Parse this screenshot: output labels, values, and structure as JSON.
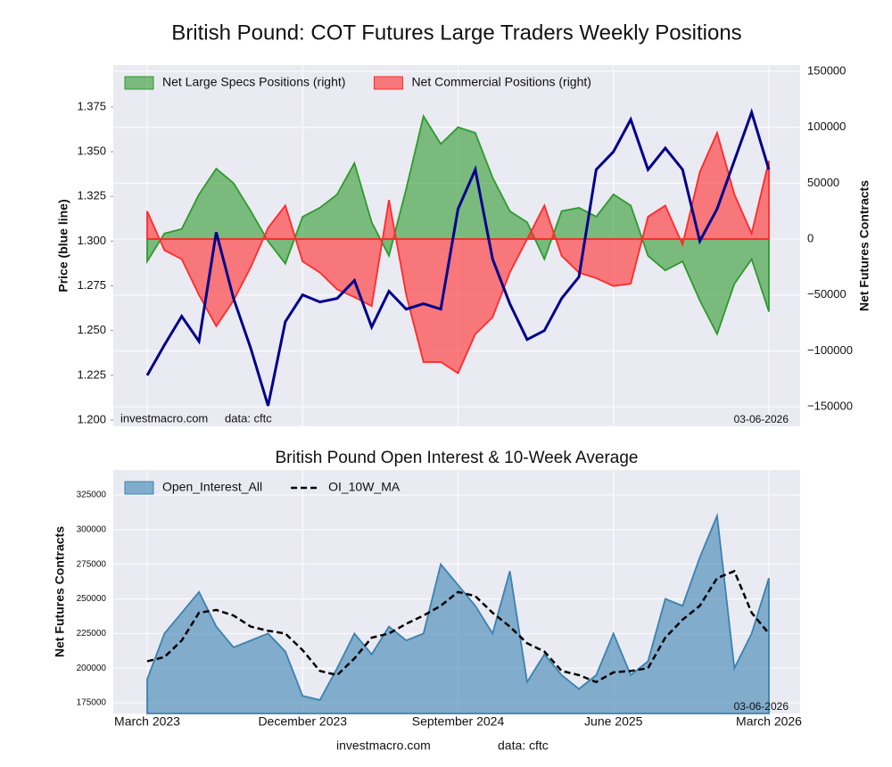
{
  "title": "British Pound: COT Futures Large Traders Weekly Positions",
  "footer": {
    "source": "investmacro.com",
    "data_note": "data: cftc"
  },
  "chart_data": [
    {
      "type": "combo",
      "ylabel": "Price (blue line)",
      "y2label": "Net Futures Contracts",
      "source": "investmacro.com",
      "data_note": "data: cftc",
      "date_note": "03-06-2026",
      "x": [
        "2023-03",
        "2023-04",
        "2023-05",
        "2023-06",
        "2023-07",
        "2023-08",
        "2023-09",
        "2023-10",
        "2023-11",
        "2023-12",
        "2024-01",
        "2024-02",
        "2024-03",
        "2024-04",
        "2024-05",
        "2024-06",
        "2024-07",
        "2024-08",
        "2024-09",
        "2024-10",
        "2024-11",
        "2024-12",
        "2025-01",
        "2025-02",
        "2025-03",
        "2025-04",
        "2025-05",
        "2025-06",
        "2025-07",
        "2025-08",
        "2025-09",
        "2025-10",
        "2025-11",
        "2025-12",
        "2026-01",
        "2026-02",
        "2026-03"
      ],
      "xticks": [
        "2023-03",
        "2023-12",
        "2024-09",
        "2025-06",
        "2026-03"
      ],
      "ylim": [
        1.1965,
        1.3984
      ],
      "yticks": [
        {
          "value": 1.2,
          "label": "1.200"
        },
        1.225,
        {
          "value": 1.25,
          "label": "1.250"
        },
        1.275,
        {
          "value": 1.3,
          "label": "1.300"
        },
        1.325,
        {
          "value": 1.35,
          "label": "1.350"
        },
        1.375
      ],
      "y2lim": [
        -167500,
        155600
      ],
      "y2ticks": [
        {
          "value": -150000,
          "label": "−150000"
        },
        {
          "value": -100000,
          "label": "−100000"
        },
        {
          "value": -50000,
          "label": "−50000"
        },
        0,
        50000,
        100000,
        150000
      ],
      "grid": true,
      "legend": "upper left",
      "series": [
        {
          "name": "Net Large Specs Positions (right)",
          "type": "area",
          "axis": "y2",
          "color": "#2e9a2e",
          "values": [
            -20000,
            5000,
            9000,
            40000,
            63000,
            50000,
            25000,
            -2000,
            -22000,
            20000,
            28000,
            40000,
            68000,
            15000,
            -15000,
            45000,
            110000,
            85000,
            100000,
            95000,
            55000,
            25000,
            15000,
            -18000,
            25000,
            28000,
            20000,
            40000,
            30000,
            -15000,
            -28000,
            -20000,
            -55000,
            -85000,
            -40000,
            -18000,
            -65000
          ]
        },
        {
          "name": "Net Commercial Positions (right)",
          "type": "area",
          "axis": "y2",
          "color": "#ff2a2a",
          "values": [
            25000,
            -10000,
            -18000,
            -50000,
            -78000,
            -55000,
            -25000,
            10000,
            30000,
            -20000,
            -30000,
            -45000,
            -52000,
            -60000,
            35000,
            -50000,
            -110000,
            -110000,
            -120000,
            -85000,
            -70000,
            -30000,
            0,
            30000,
            -15000,
            -30000,
            -35000,
            -42000,
            -40000,
            20000,
            30000,
            -5000,
            60000,
            95000,
            40000,
            5000,
            70000
          ]
        },
        {
          "type": "line",
          "axis": "y",
          "color": "#00008b",
          "values": [
            1.225,
            1.242,
            1.258,
            1.244,
            1.305,
            1.268,
            1.24,
            1.208,
            1.255,
            1.27,
            1.266,
            1.268,
            1.278,
            1.252,
            1.272,
            1.262,
            1.265,
            1.262,
            1.318,
            1.34,
            1.29,
            1.265,
            1.245,
            1.25,
            1.268,
            1.28,
            1.34,
            1.35,
            1.368,
            1.34,
            1.352,
            1.34,
            1.3,
            1.318,
            1.345,
            1.372,
            1.34
          ]
        }
      ]
    },
    {
      "type": "combo",
      "title": "British Pound Open Interest & 10-Week Average",
      "ylabel": "Net Futures Contracts",
      "date_note": "03-06-2026",
      "x": [
        "2023-03",
        "2023-04",
        "2023-05",
        "2023-06",
        "2023-07",
        "2023-08",
        "2023-09",
        "2023-10",
        "2023-11",
        "2023-12",
        "2024-01",
        "2024-02",
        "2024-03",
        "2024-04",
        "2024-05",
        "2024-06",
        "2024-07",
        "2024-08",
        "2024-09",
        "2024-10",
        "2024-11",
        "2024-12",
        "2025-01",
        "2025-02",
        "2025-03",
        "2025-04",
        "2025-05",
        "2025-06",
        "2025-07",
        "2025-08",
        "2025-09",
        "2025-10",
        "2025-11",
        "2025-12",
        "2026-01",
        "2026-02",
        "2026-03"
      ],
      "xticks": [
        {
          "value": "2023-03",
          "label": "March 2023"
        },
        {
          "value": "2023-12",
          "label": "December 2023"
        },
        {
          "value": "2024-09",
          "label": "September 2024"
        },
        {
          "value": "2025-06",
          "label": "June 2025"
        },
        {
          "value": "2026-03",
          "label": "March 2026"
        }
      ],
      "ylim": [
        167300,
        343000
      ],
      "yticks": [
        175000,
        200000,
        225000,
        250000,
        275000,
        300000,
        325000
      ],
      "grid": true,
      "legend": "upper left",
      "series": [
        {
          "name": "Open_Interest_All",
          "type": "area",
          "axis": "y",
          "color": "#3a82b0",
          "values": [
            192000,
            225000,
            240000,
            255000,
            230000,
            215000,
            220000,
            225000,
            212000,
            180000,
            177000,
            200000,
            225000,
            210000,
            230000,
            220000,
            225000,
            275000,
            260000,
            245000,
            225000,
            270000,
            190000,
            210000,
            195000,
            185000,
            195000,
            225000,
            195000,
            205000,
            250000,
            245000,
            280000,
            310000,
            200000,
            225000,
            265000
          ]
        },
        {
          "name": "OI_10W_MA",
          "type": "line",
          "dash": true,
          "axis": "y",
          "color": "#000000",
          "values": [
            205000,
            208000,
            220000,
            240000,
            242000,
            238000,
            230000,
            227000,
            225000,
            213000,
            198000,
            195000,
            207000,
            222000,
            225000,
            232000,
            238000,
            245000,
            255000,
            252000,
            240000,
            230000,
            218000,
            212000,
            198000,
            195000,
            190000,
            197000,
            198000,
            200000,
            222000,
            235000,
            245000,
            265000,
            270000,
            240000,
            225000
          ]
        }
      ]
    }
  ]
}
